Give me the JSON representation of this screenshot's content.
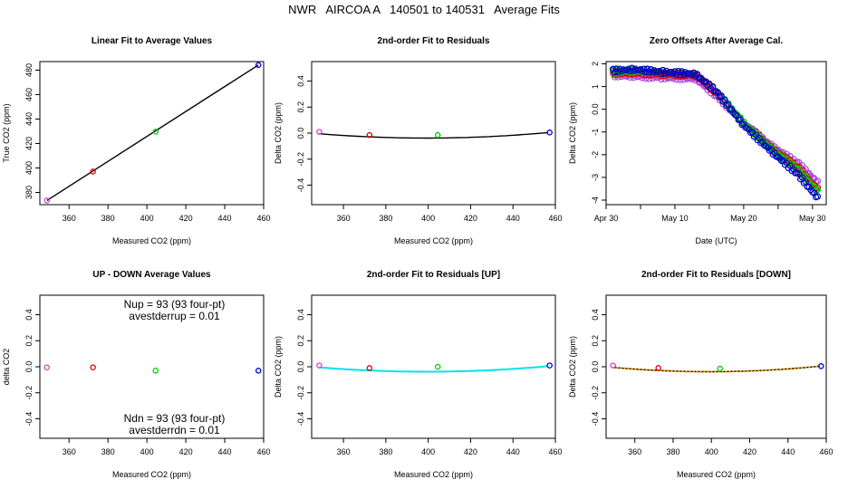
{
  "page_title": "NWR   AIRCOA A   140501 to 140531   Average Fits",
  "colors": {
    "purple": "#cc44cc",
    "red": "#dd0000",
    "green": "#00cc00",
    "blue": "#0000cc",
    "cyan": "#00e5ee",
    "orange": "#ffa500",
    "black": "#000000",
    "magenta": "#aa44dd"
  },
  "chart_data": [
    {
      "id": "linear-fit",
      "type": "scatter",
      "title": "Linear Fit to Average Values",
      "xlabel": "Measured CO2 (ppm)",
      "ylabel": "True CO2 (ppm)",
      "xlim": [
        345,
        460
      ],
      "ylim": [
        370,
        487
      ],
      "xticks": [
        360,
        380,
        400,
        420,
        440,
        460
      ],
      "yticks": [
        380,
        400,
        420,
        440,
        460,
        480
      ],
      "points": [
        {
          "x": 348.6,
          "y": 373.4,
          "color": "purple"
        },
        {
          "x": 372.3,
          "y": 397.1,
          "color": "red"
        },
        {
          "x": 404.5,
          "y": 429.8,
          "color": "green"
        },
        {
          "x": 457.3,
          "y": 484.2,
          "color": "blue"
        }
      ],
      "fit_line": {
        "x": [
          348.6,
          457.3
        ],
        "y": [
          373.4,
          484.2
        ],
        "color": "black"
      }
    },
    {
      "id": "residuals",
      "type": "scatter",
      "title": "2nd-order Fit to Residuals",
      "xlabel": "Measured CO2 (ppm)",
      "ylabel": "Delta CO2 (ppm)",
      "xlim": [
        345,
        460
      ],
      "ylim": [
        -0.55,
        0.55
      ],
      "xticks": [
        360,
        380,
        400,
        420,
        440,
        460
      ],
      "yticks": [
        -0.4,
        -0.2,
        0.0,
        0.2,
        0.4
      ],
      "points": [
        {
          "x": 348.6,
          "y": 0.01,
          "color": "purple"
        },
        {
          "x": 372.3,
          "y": -0.015,
          "color": "red"
        },
        {
          "x": 404.5,
          "y": -0.015,
          "color": "green"
        },
        {
          "x": 457.3,
          "y": 0.005,
          "color": "blue"
        }
      ],
      "fit_curve": {
        "a": 1.29e-05,
        "b": -0.0103,
        "c": 2.018,
        "colors": [
          "black"
        ]
      }
    },
    {
      "id": "zero-offsets",
      "type": "scatter",
      "title": "Zero Offsets After Average Cal.",
      "xlabel": "Date (UTC)",
      "ylabel": "Delta CO2 (ppm)",
      "xlim": [
        0,
        32
      ],
      "ylim": [
        -4.2,
        2.1
      ],
      "xticks": [
        0,
        10,
        20,
        30
      ],
      "xticklabels": [
        "Apr 30",
        "May 10",
        "May 20",
        "May 30"
      ],
      "xminor": [
        5,
        15,
        25
      ],
      "yticks": [
        -4,
        -3,
        -2,
        -1,
        0,
        1,
        2
      ],
      "series": [
        {
          "name": "purple",
          "color": "magenta",
          "t": [
            1,
            4,
            8,
            13,
            16,
            20,
            24,
            28,
            31
          ],
          "y": [
            1.5,
            1.45,
            1.4,
            1.35,
            0.6,
            -0.6,
            -1.6,
            -2.4,
            -3.3
          ]
        },
        {
          "name": "red",
          "color": "red",
          "t": [
            1,
            4,
            8,
            13,
            16,
            20,
            24,
            28,
            31
          ],
          "y": [
            1.6,
            1.6,
            1.55,
            1.5,
            0.75,
            -0.6,
            -1.7,
            -2.6,
            -3.6
          ]
        },
        {
          "name": "green",
          "color": "green",
          "t": [
            1,
            4,
            8,
            13,
            16,
            20,
            24,
            28,
            31
          ],
          "y": [
            1.65,
            1.7,
            1.65,
            1.55,
            0.8,
            -0.6,
            -1.75,
            -2.7,
            -3.7
          ]
        },
        {
          "name": "blue",
          "color": "blue",
          "t": [
            1,
            4,
            8,
            13,
            16,
            20,
            24,
            28,
            31
          ],
          "y": [
            1.7,
            1.75,
            1.65,
            1.55,
            0.8,
            -0.7,
            -1.85,
            -2.9,
            -4.0
          ]
        }
      ]
    },
    {
      "id": "up-down",
      "type": "scatter",
      "title": "UP - DOWN Average Values",
      "xlabel": "Measured CO2 (ppm)",
      "ylabel": "delta CO2",
      "xlim": [
        345,
        460
      ],
      "ylim": [
        -0.55,
        0.55
      ],
      "xticks": [
        360,
        380,
        400,
        420,
        440,
        460
      ],
      "yticks": [
        -0.4,
        -0.2,
        0.0,
        0.2,
        0.4
      ],
      "points": [
        {
          "x": 348.6,
          "y": -0.005,
          "color": "purple"
        },
        {
          "x": 372.3,
          "y": -0.005,
          "color": "red"
        },
        {
          "x": 404.5,
          "y": -0.03,
          "color": "green"
        },
        {
          "x": 457.3,
          "y": -0.03,
          "color": "blue"
        }
      ],
      "annotations": {
        "nup": "Nup = 93 (93 four-pt)",
        "avestderrup": "avestderrup =  0.01",
        "ndn": "Ndn = 93 (93 four-pt)",
        "avestderrdn": "avestderrdn =  0.01"
      }
    },
    {
      "id": "residuals-up",
      "type": "scatter",
      "title": "2nd-order Fit to Residuals [UP]",
      "xlabel": "Measured CO2 (ppm)",
      "ylabel": "Delta CO2 (ppm)",
      "xlim": [
        345,
        460
      ],
      "ylim": [
        -0.55,
        0.55
      ],
      "xticks": [
        360,
        380,
        400,
        420,
        440,
        460
      ],
      "yticks": [
        -0.4,
        -0.2,
        0.0,
        0.2,
        0.4
      ],
      "points": [
        {
          "x": 348.6,
          "y": 0.01,
          "color": "purple"
        },
        {
          "x": 372.3,
          "y": -0.01,
          "color": "red"
        },
        {
          "x": 404.5,
          "y": 0.0,
          "color": "green"
        },
        {
          "x": 457.3,
          "y": 0.01,
          "color": "blue"
        }
      ],
      "fit_curve": {
        "a": 1.29e-05,
        "b": -0.0103,
        "c": 2.018,
        "colors": [
          "black",
          "cyan"
        ]
      }
    },
    {
      "id": "residuals-down",
      "type": "scatter",
      "title": "2nd-order Fit to Residuals [DOWN]",
      "xlabel": "Measured CO2 (ppm)",
      "ylabel": "Delta CO2 (ppm)",
      "xlim": [
        345,
        460
      ],
      "ylim": [
        -0.55,
        0.55
      ],
      "xticks": [
        360,
        380,
        400,
        420,
        440,
        460
      ],
      "yticks": [
        -0.4,
        -0.2,
        0.0,
        0.2,
        0.4
      ],
      "points": [
        {
          "x": 348.6,
          "y": 0.01,
          "color": "purple"
        },
        {
          "x": 372.3,
          "y": -0.01,
          "color": "red"
        },
        {
          "x": 404.5,
          "y": -0.015,
          "color": "green"
        },
        {
          "x": 457.3,
          "y": 0.005,
          "color": "blue"
        }
      ],
      "fit_curve": {
        "a": 1.29e-05,
        "b": -0.0103,
        "c": 2.018,
        "colors": [
          "black",
          "orange"
        ]
      }
    }
  ]
}
